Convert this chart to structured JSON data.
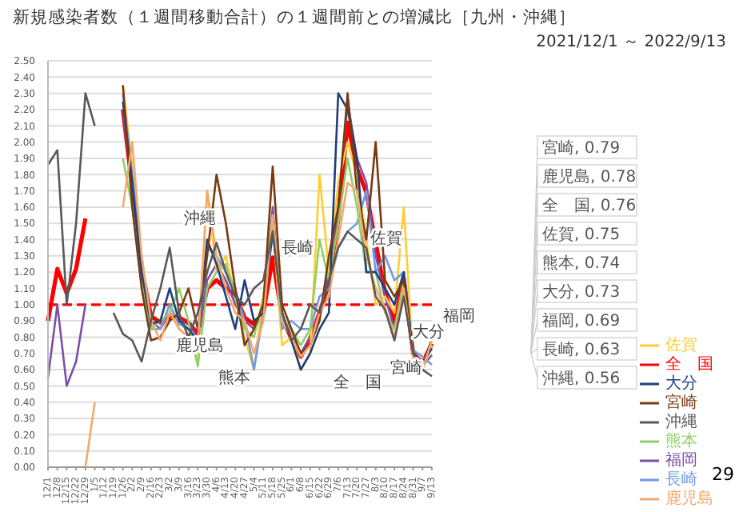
{
  "chart_data": {
    "type": "line",
    "title": "新規感染者数（１週間移動合計）の１週間前との増減比［九州・沖縄］",
    "subtitle": "2021/12/1 ～ 2022/9/13",
    "categories": [
      "12/1",
      "12/8",
      "12/15",
      "12/22",
      "12/29",
      "1/5",
      "1/12",
      "1/19",
      "1/26",
      "2/2",
      "2/9",
      "2/16",
      "2/23",
      "3/2",
      "3/9",
      "3/16",
      "3/23",
      "3/30",
      "4/6",
      "4/13",
      "4/20",
      "4/27",
      "5/4",
      "5/11",
      "5/18",
      "5/25",
      "6/1",
      "6/8",
      "6/15",
      "6/22",
      "6/29",
      "7/6",
      "7/13",
      "7/20",
      "7/27",
      "8/3",
      "8/10",
      "8/17",
      "8/24",
      "8/31",
      "9/7",
      "9/13"
    ],
    "series": [
      {
        "name": "全　国",
        "color": "#ff0000",
        "values": [
          0.9,
          1.22,
          1.07,
          1.22,
          1.53,
          null,
          null,
          null,
          2.2,
          1.72,
          1.22,
          0.93,
          0.89,
          0.92,
          0.92,
          0.89,
          0.82,
          1.1,
          1.15,
          1.1,
          1.06,
          0.92,
          0.88,
          0.95,
          1.29,
          0.92,
          0.79,
          0.68,
          0.79,
          0.95,
          1.13,
          1.53,
          2.12,
          1.84,
          1.69,
          1.38,
          1.07,
          0.89,
          1.16,
          0.7,
          0.64,
          0.76
        ]
      },
      {
        "name": "福岡",
        "color": "#7b4fa8",
        "values": [
          0.55,
          1.0,
          0.5,
          0.65,
          1.0,
          null,
          null,
          null,
          2.2,
          1.7,
          1.25,
          0.9,
          0.85,
          0.95,
          0.9,
          0.88,
          0.8,
          1.15,
          1.25,
          1.15,
          1.0,
          0.9,
          0.85,
          0.95,
          1.6,
          0.9,
          0.8,
          0.7,
          0.8,
          0.95,
          1.2,
          1.6,
          2.25,
          1.9,
          1.75,
          1.3,
          1.05,
          0.85,
          1.1,
          0.68,
          0.62,
          0.69
        ]
      },
      {
        "name": "佐賀",
        "color": "#ffcc33",
        "values": [
          null,
          null,
          null,
          null,
          null,
          null,
          null,
          null,
          2.35,
          1.85,
          1.3,
          0.85,
          0.85,
          1.0,
          0.85,
          0.8,
          0.65,
          1.7,
          1.2,
          1.3,
          1.05,
          0.8,
          0.6,
          1.05,
          1.5,
          0.75,
          0.8,
          0.6,
          0.7,
          1.8,
          1.2,
          1.75,
          2.0,
          1.8,
          1.4,
          1.0,
          1.05,
          0.95,
          1.6,
          0.65,
          0.6,
          0.75
        ]
      },
      {
        "name": "長崎",
        "color": "#6f9be0",
        "values": [
          null,
          null,
          null,
          null,
          null,
          null,
          null,
          null,
          2.3,
          1.8,
          1.3,
          0.85,
          0.85,
          1.0,
          0.88,
          0.85,
          0.75,
          1.35,
          1.3,
          1.2,
          1.1,
          0.9,
          0.6,
          0.95,
          1.55,
          0.85,
          0.9,
          0.85,
          0.85,
          1.05,
          1.1,
          1.35,
          1.45,
          1.5,
          1.7,
          1.2,
          1.3,
          1.15,
          1.2,
          0.72,
          0.68,
          0.63
        ]
      },
      {
        "name": "熊本",
        "color": "#8fcf6a",
        "values": [
          null,
          null,
          null,
          null,
          null,
          null,
          null,
          null,
          1.9,
          1.6,
          1.15,
          0.85,
          0.9,
          0.95,
          1.1,
          0.9,
          0.62,
          1.1,
          1.2,
          1.25,
          1.05,
          0.85,
          0.8,
          1.05,
          1.55,
          0.9,
          0.85,
          0.75,
          0.85,
          1.4,
          1.15,
          1.5,
          1.9,
          1.6,
          1.2,
          1.2,
          0.95,
          0.85,
          1.15,
          0.7,
          0.63,
          0.74
        ]
      },
      {
        "name": "大分",
        "color": "#1f3f7a",
        "values": [
          null,
          null,
          null,
          null,
          null,
          null,
          null,
          null,
          2.25,
          1.75,
          1.2,
          0.88,
          0.9,
          1.1,
          0.9,
          0.85,
          0.78,
          1.4,
          1.25,
          1.05,
          0.85,
          1.15,
          0.9,
          0.95,
          1.45,
          0.95,
          0.78,
          0.6,
          0.7,
          0.85,
          0.95,
          2.3,
          2.2,
          1.9,
          1.2,
          1.2,
          1.1,
          1.0,
          1.2,
          0.7,
          0.64,
          0.73
        ]
      },
      {
        "name": "宮崎",
        "color": "#7a3a10",
        "values": [
          null,
          null,
          null,
          null,
          null,
          null,
          null,
          null,
          2.35,
          1.6,
          1.1,
          0.78,
          0.8,
          0.9,
          0.95,
          1.1,
          0.85,
          1.3,
          1.8,
          1.5,
          1.1,
          0.75,
          0.85,
          1.0,
          1.85,
          1.0,
          0.85,
          0.7,
          0.75,
          0.9,
          1.3,
          1.6,
          2.3,
          1.7,
          1.4,
          2.0,
          1.15,
          1.05,
          1.15,
          0.7,
          0.62,
          0.79
        ]
      },
      {
        "name": "鹿児島",
        "color": "#f4a86c",
        "values": [
          null,
          null,
          0,
          0,
          0,
          0.4,
          null,
          null,
          1.6,
          2.0,
          1.3,
          0.9,
          0.78,
          0.95,
          0.85,
          0.8,
          0.75,
          1.7,
          1.3,
          1.1,
          0.95,
          0.9,
          0.7,
          0.9,
          1.55,
          0.9,
          0.8,
          0.68,
          0.75,
          0.95,
          1.05,
          1.4,
          1.75,
          1.7,
          1.3,
          1.1,
          0.98,
          0.8,
          1.1,
          0.68,
          0.6,
          0.78
        ]
      },
      {
        "name": "沖縄",
        "color": "#595959",
        "values": [
          1.86,
          1.95,
          1.0,
          1.5,
          2.3,
          2.1,
          null,
          0.95,
          0.82,
          0.78,
          0.65,
          0.9,
          1.1,
          1.35,
          0.95,
          0.8,
          0.95,
          1.2,
          1.38,
          1.2,
          1.05,
          1.0,
          1.1,
          1.15,
          1.45,
          0.95,
          0.78,
          0.85,
          1.0,
          0.95,
          1.15,
          1.35,
          1.45,
          1.4,
          1.35,
          1.05,
          0.97,
          0.78,
          1.05,
          0.7,
          0.6,
          0.56
        ]
      }
    ],
    "ylim": [
      0,
      2.5
    ],
    "yticks": [
      {
        "value": 0,
        "label": "0.00"
      },
      {
        "value": 0.1,
        "label": "0.10"
      },
      {
        "value": 0.2,
        "label": "0.20"
      },
      {
        "value": 0.3,
        "label": "0.30"
      },
      {
        "value": 0.4,
        "label": "0.40"
      },
      {
        "value": 0.5,
        "label": "0.50"
      },
      {
        "value": 0.6,
        "label": "0.60"
      },
      {
        "value": 0.7,
        "label": "0.70"
      },
      {
        "value": 0.8,
        "label": "0.80"
      },
      {
        "value": 0.9,
        "label": "0.90"
      },
      {
        "value": 1,
        "label": "1.00"
      },
      {
        "value": 1.1,
        "label": "1.10"
      },
      {
        "value": 1.2,
        "label": "1.20"
      },
      {
        "value": 1.3,
        "label": "1.30"
      },
      {
        "value": 1.4,
        "label": "1.40"
      },
      {
        "value": 1.5,
        "label": "1.50"
      },
      {
        "value": 1.6,
        "label": "1.60"
      },
      {
        "value": 1.7,
        "label": "1.70"
      },
      {
        "value": 1.8,
        "label": "1.80"
      },
      {
        "value": 1.9,
        "label": "1.90"
      },
      {
        "value": 2,
        "label": "2.00"
      },
      {
        "value": 2.1,
        "label": "2.10"
      },
      {
        "value": 2.2,
        "label": "2.20"
      },
      {
        "value": 2.3,
        "label": "2.30"
      },
      {
        "value": 2.4,
        "label": "2.40"
      },
      {
        "value": 2.5,
        "label": "2.50"
      }
    ],
    "ref_lines": [
      {
        "axis": "y",
        "value": 1,
        "color": "#ff0000",
        "line_style": "dashed"
      }
    ],
    "annotations": [
      "沖縄",
      "長崎",
      "鹿児島",
      "熊本",
      "佐賀",
      "全　国",
      "宮崎",
      "大分",
      "福岡",
      "宮崎, 0.79",
      "鹿児島, 0.78",
      "全　国, 0.76",
      "佐賀, 0.75",
      "熊本, 0.74",
      "大分, 0.73",
      "福岡, 0.69",
      "長崎, 0.63",
      "沖縄, 0.56",
      "29"
    ],
    "grid": "y",
    "legend": "bottom right",
    "marker": "none",
    "line_style": "solid"
  }
}
